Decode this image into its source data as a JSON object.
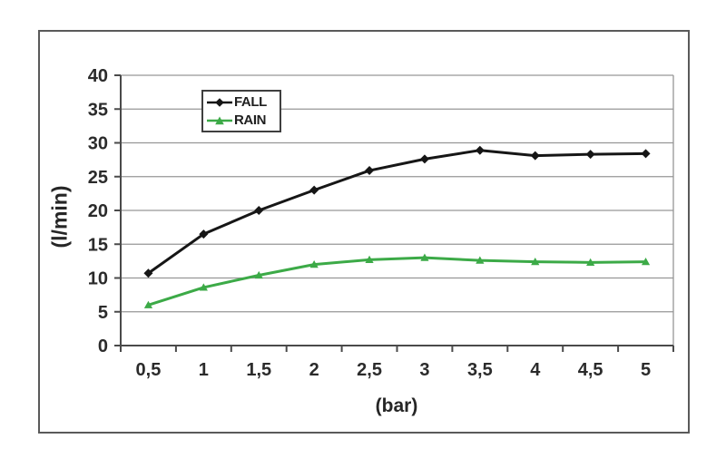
{
  "chart_data": {
    "type": "line",
    "title": "",
    "xlabel": "(bar)",
    "ylabel": "(l/min)",
    "categories": [
      "0,5",
      "1",
      "1,5",
      "2",
      "2,5",
      "3",
      "3,5",
      "4",
      "4,5",
      "5"
    ],
    "series": [
      {
        "name": "FALL",
        "color": "#161616",
        "marker": "diamond",
        "values": [
          10.7,
          16.5,
          20.0,
          23.0,
          25.9,
          27.6,
          28.9,
          28.1,
          28.3,
          28.4
        ]
      },
      {
        "name": "RAIN",
        "color": "#3caa47",
        "marker": "triangle",
        "values": [
          6.0,
          8.6,
          10.4,
          12.0,
          12.7,
          13.0,
          12.6,
          12.4,
          12.3,
          12.4
        ]
      }
    ],
    "ylim": [
      0,
      40
    ],
    "yticks": [
      0,
      5,
      10,
      15,
      20,
      25,
      30,
      35,
      40
    ],
    "grid": "horizontal",
    "legend_position": "inside-top-left"
  },
  "style": {
    "grid_color": "#969696",
    "axis_color": "#4a4a4a",
    "frame_border": "#5a5a5a",
    "text_color": "#2b2b2b",
    "background": "#ffffff"
  }
}
